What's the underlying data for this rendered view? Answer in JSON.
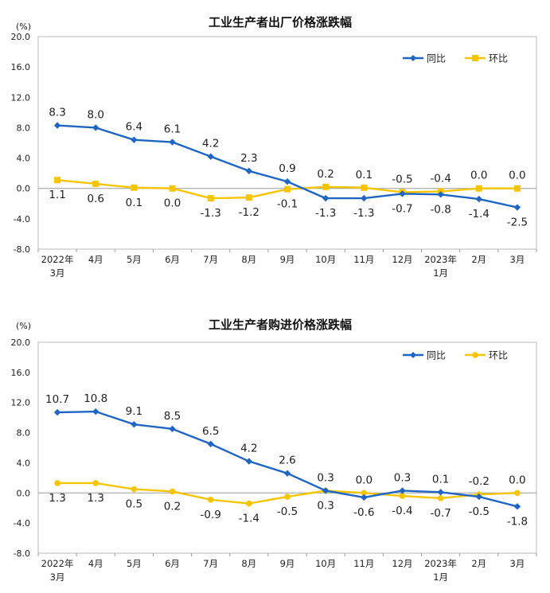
{
  "chart_data": [
    {
      "type": "line",
      "title": "工业生产者出厂价格涨跌幅",
      "ylabel": "(%)",
      "ylim": [
        -8.0,
        20.0
      ],
      "yticks": [
        "20.0",
        "16.0",
        "12.0",
        "8.0",
        "4.0",
        "0.0",
        "-4.0",
        "-8.0"
      ],
      "ytick_values": [
        20,
        16,
        12,
        8,
        4,
        0,
        -4,
        -8
      ],
      "legend_position": "top-right",
      "categories": [
        {
          "line1": "2022年",
          "line2": "3月"
        },
        {
          "line1": "4月",
          "line2": ""
        },
        {
          "line1": "5月",
          "line2": ""
        },
        {
          "line1": "6月",
          "line2": ""
        },
        {
          "line1": "7月",
          "line2": ""
        },
        {
          "line1": "8月",
          "line2": ""
        },
        {
          "line1": "9月",
          "line2": ""
        },
        {
          "line1": "10月",
          "line2": ""
        },
        {
          "line1": "11月",
          "line2": ""
        },
        {
          "line1": "12月",
          "line2": ""
        },
        {
          "line1": "2023年",
          "line2": "1月"
        },
        {
          "line1": "2月",
          "line2": ""
        },
        {
          "line1": "3月",
          "line2": ""
        }
      ],
      "series": [
        {
          "name": "同比",
          "color": "#1F66C4",
          "marker": "diamond",
          "values": [
            8.3,
            8.0,
            6.4,
            6.1,
            4.2,
            2.3,
            0.9,
            -1.3,
            -1.3,
            -0.7,
            -0.8,
            -1.4,
            -2.5
          ],
          "labels": [
            "8.3",
            "8.0",
            "6.4",
            "6.1",
            "4.2",
            "2.3",
            "0.9",
            "-1.3",
            "-1.3",
            "-0.7",
            "-0.8",
            "-1.4",
            "-2.5"
          ],
          "label_pos": [
            "above",
            "above",
            "above",
            "above",
            "above",
            "above",
            "above",
            "below",
            "below",
            "below",
            "below",
            "below",
            "below"
          ]
        },
        {
          "name": "环比",
          "color": "#F7C400",
          "marker": "square",
          "values": [
            1.1,
            0.6,
            0.1,
            0.0,
            -1.3,
            -1.2,
            -0.1,
            0.2,
            0.1,
            -0.5,
            -0.4,
            0.0,
            0.0
          ],
          "labels": [
            "1.1",
            "0.6",
            "0.1",
            "0.0",
            "-1.3",
            "-1.2",
            "-0.1",
            "0.2",
            "0.1",
            "-0.5",
            "-0.4",
            "0.0",
            "0.0"
          ],
          "label_pos": [
            "below",
            "below",
            "below",
            "below",
            "below",
            "below",
            "below",
            "above",
            "above",
            "above",
            "above",
            "above",
            "above"
          ]
        }
      ]
    },
    {
      "type": "line",
      "title": "工业生产者购进价格涨跌幅",
      "ylabel": "(%)",
      "ylim": [
        -8.0,
        20.0
      ],
      "yticks": [
        "20.0",
        "16.0",
        "12.0",
        "8.0",
        "4.0",
        "0.0",
        "-4.0",
        "-8.0"
      ],
      "ytick_values": [
        20,
        16,
        12,
        8,
        4,
        0,
        -4,
        -8
      ],
      "legend_position": "top-right",
      "categories": [
        {
          "line1": "2022年",
          "line2": "3月"
        },
        {
          "line1": "4月",
          "line2": ""
        },
        {
          "line1": "5月",
          "line2": ""
        },
        {
          "line1": "6月",
          "line2": ""
        },
        {
          "line1": "7月",
          "line2": ""
        },
        {
          "line1": "8月",
          "line2": ""
        },
        {
          "line1": "9月",
          "line2": ""
        },
        {
          "line1": "10月",
          "line2": ""
        },
        {
          "line1": "11月",
          "line2": ""
        },
        {
          "line1": "12月",
          "line2": ""
        },
        {
          "line1": "2023年",
          "line2": "1月"
        },
        {
          "line1": "2月",
          "line2": ""
        },
        {
          "line1": "3月",
          "line2": ""
        }
      ],
      "series": [
        {
          "name": "同比",
          "color": "#1F66C4",
          "marker": "diamond",
          "values": [
            10.7,
            10.8,
            9.1,
            8.5,
            6.5,
            4.2,
            2.6,
            0.3,
            -0.6,
            0.3,
            0.1,
            -0.5,
            -1.8
          ],
          "labels": [
            "10.7",
            "10.8",
            "9.1",
            "8.5",
            "6.5",
            "4.2",
            "2.6",
            "0.3",
            "-0.6",
            "0.3",
            "0.1",
            "-0.5",
            "-1.8"
          ],
          "label_pos": [
            "above",
            "above",
            "above",
            "above",
            "above",
            "above",
            "above",
            "below",
            "below",
            "above",
            "above",
            "below",
            "below"
          ]
        },
        {
          "name": "环比",
          "color": "#F7C400",
          "marker": "circle",
          "values": [
            1.3,
            1.3,
            0.5,
            0.2,
            -0.9,
            -1.4,
            -0.5,
            0.3,
            0.0,
            -0.4,
            -0.7,
            -0.2,
            0.0
          ],
          "labels": [
            "1.3",
            "1.3",
            "0.5",
            "0.2",
            "-0.9",
            "-1.4",
            "-0.5",
            "0.3",
            "0.0",
            "-0.4",
            "-0.7",
            "-0.2",
            "0.0"
          ],
          "label_pos": [
            "below",
            "below",
            "below",
            "below",
            "below",
            "below",
            "below",
            "above",
            "above",
            "below",
            "below",
            "above",
            "above"
          ]
        }
      ]
    }
  ]
}
